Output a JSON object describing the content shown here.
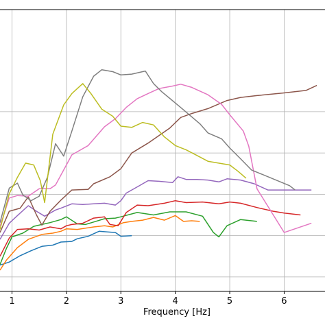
{
  "chart_data": {
    "type": "line",
    "xlabel": "Frequency [Hz]",
    "ylabel": "",
    "title": "",
    "xlim": [
      0.78,
      6.75
    ],
    "ylim": [
      0,
      100
    ],
    "grid": true,
    "x_ticks": [
      1,
      2,
      3,
      4,
      5,
      6
    ],
    "x_tick_labels": [
      "1",
      "2",
      "3",
      "4",
      "5",
      "6"
    ],
    "y_gridlines": [
      7,
      27,
      47,
      67,
      87
    ],
    "colors": [
      "#1f77b4",
      "#ff7f0e",
      "#2ca02c",
      "#d62728",
      "#9467bd",
      "#8c564b",
      "#e377c2",
      "#7f7f7f",
      "#bcbd22"
    ],
    "series": [
      {
        "color": "#1f77b4",
        "x": [
          0.78,
          0.95,
          1.15,
          1.35,
          1.55,
          1.75,
          1.9,
          2.1,
          2.2,
          2.4,
          2.6,
          2.75,
          2.9,
          3.0,
          3.2
        ],
        "y": [
          12.7,
          14.2,
          17.3,
          19.7,
          21.8,
          22.4,
          23.9,
          24.2,
          25.5,
          26.7,
          29.1,
          28.8,
          28.5,
          26.7,
          27.0
        ]
      },
      {
        "color": "#ff7f0e",
        "x": [
          0.78,
          0.9,
          1.1,
          1.3,
          1.55,
          1.75,
          1.9,
          2.0,
          2.2,
          2.5,
          2.7,
          2.85,
          3.05,
          3.2,
          3.4,
          3.6,
          3.8,
          4.0,
          4.15,
          4.3,
          4.45
        ],
        "y": [
          10.3,
          15.2,
          21.2,
          25.2,
          27.6,
          28.2,
          29.1,
          30.3,
          30.0,
          31.2,
          31.8,
          31.2,
          33.3,
          33.9,
          34.5,
          35.8,
          34.5,
          36.7,
          33.9,
          34.2,
          33.9
        ]
      },
      {
        "color": "#2ca02c",
        "x": [
          0.78,
          0.9,
          1.0,
          1.2,
          1.4,
          1.55,
          1.7,
          1.9,
          2.0,
          2.2,
          2.35,
          2.5,
          2.7,
          2.9,
          3.0,
          3.3,
          3.6,
          3.9,
          4.2,
          4.5,
          4.7,
          4.8,
          4.95,
          5.2,
          5.5
        ],
        "y": [
          13.0,
          20.9,
          26.4,
          28.2,
          31.5,
          32.4,
          33.3,
          34.8,
          36.1,
          32.7,
          32.4,
          33.6,
          35.2,
          35.5,
          36.1,
          38.2,
          37.0,
          38.5,
          38.5,
          36.4,
          28.5,
          26.4,
          31.8,
          34.8,
          33.9
        ]
      },
      {
        "color": "#d62728",
        "x": [
          0.78,
          0.95,
          1.1,
          1.3,
          1.5,
          1.7,
          1.9,
          2.0,
          2.1,
          2.3,
          2.5,
          2.7,
          2.8,
          2.95,
          3.1,
          3.3,
          3.5,
          3.8,
          4.0,
          4.2,
          4.5,
          4.8,
          5.0,
          5.2,
          5.5,
          5.8,
          6.0,
          6.3
        ],
        "y": [
          17.0,
          25.8,
          30.0,
          30.3,
          29.7,
          31.2,
          30.3,
          31.8,
          32.4,
          33.0,
          35.5,
          36.1,
          32.4,
          31.8,
          38.2,
          41.8,
          41.5,
          42.7,
          43.9,
          43.0,
          43.3,
          42.4,
          43.3,
          42.7,
          40.6,
          38.8,
          37.9,
          37.0
        ]
      },
      {
        "color": "#9467bd",
        "x": [
          0.78,
          0.95,
          1.1,
          1.3,
          1.45,
          1.6,
          1.8,
          1.9,
          2.1,
          2.3,
          2.5,
          2.7,
          2.9,
          3.0,
          3.1,
          3.3,
          3.5,
          3.7,
          3.95,
          4.05,
          4.2,
          4.4,
          4.6,
          4.8,
          4.95,
          5.2,
          5.45,
          5.7,
          6.0,
          6.5
        ],
        "y": [
          25.2,
          33.0,
          36.7,
          41.5,
          38.8,
          36.4,
          39.4,
          40.3,
          42.4,
          42.1,
          42.4,
          42.7,
          41.8,
          43.9,
          47.6,
          50.6,
          53.6,
          53.3,
          52.7,
          55.5,
          54.2,
          54.2,
          53.9,
          53.0,
          54.5,
          53.9,
          52.1,
          49.1,
          49.1,
          49.1
        ]
      },
      {
        "color": "#8c564b",
        "x": [
          0.78,
          0.95,
          1.15,
          1.3,
          1.45,
          1.55,
          1.7,
          1.9,
          2.1,
          2.4,
          2.5,
          2.8,
          3.0,
          3.2,
          3.5,
          3.9,
          4.1,
          4.3,
          4.6,
          4.95,
          5.2,
          5.5,
          6.0,
          6.4,
          6.6
        ],
        "y": [
          28.5,
          38.8,
          40.3,
          45.8,
          37.0,
          32.1,
          38.8,
          44.2,
          49.1,
          49.4,
          52.1,
          55.5,
          59.4,
          67.0,
          71.8,
          79.1,
          84.2,
          86.1,
          88.5,
          92.4,
          93.9,
          94.8,
          96.1,
          97.3,
          99.7
        ]
      },
      {
        "color": "#e377c2",
        "x": [
          0.78,
          0.95,
          1.1,
          1.3,
          1.5,
          1.7,
          1.8,
          2.1,
          2.4,
          2.7,
          2.9,
          3.1,
          3.3,
          3.5,
          3.7,
          3.95,
          4.1,
          4.3,
          4.6,
          4.85,
          5.0,
          5.25,
          5.35,
          5.5,
          6.0,
          6.5
        ],
        "y": [
          31.5,
          45.2,
          46.4,
          46.1,
          49.7,
          49.7,
          51.5,
          66.1,
          70.6,
          79.7,
          83.6,
          89.1,
          93.3,
          95.8,
          98.2,
          99.4,
          100.3,
          98.8,
          95.2,
          90.6,
          85.5,
          77.6,
          70.3,
          49.7,
          28.5,
          33.0
        ]
      },
      {
        "color": "#7f7f7f",
        "x": [
          0.78,
          0.95,
          1.1,
          1.2,
          1.35,
          1.5,
          1.65,
          1.8,
          1.95,
          2.1,
          2.3,
          2.5,
          2.65,
          2.85,
          3.0,
          3.2,
          3.45,
          3.6,
          3.75,
          4.0,
          4.15,
          4.45,
          4.6,
          4.85,
          5.0,
          5.2,
          5.4,
          6.1,
          6.2
        ],
        "y": [
          33.3,
          50.0,
          52.4,
          46.7,
          43.9,
          46.1,
          55.2,
          71.5,
          65.5,
          77.6,
          94.2,
          104.2,
          107.3,
          106.4,
          104.8,
          105.2,
          106.7,
          100.6,
          96.7,
          91.2,
          87.9,
          81.2,
          76.7,
          73.9,
          69.4,
          64.2,
          58.8,
          51.2,
          49.1
        ]
      },
      {
        "color": "#bcbd22",
        "x": [
          0.78,
          0.95,
          1.1,
          1.25,
          1.4,
          1.52,
          1.6,
          1.75,
          1.95,
          2.1,
          2.3,
          2.45,
          2.65,
          2.85,
          3.0,
          3.2,
          3.4,
          3.6,
          3.8,
          4.0,
          4.2,
          4.4,
          4.6,
          5.0,
          5.15,
          5.3
        ],
        "y": [
          30.0,
          47.3,
          55.2,
          62.1,
          61.2,
          53.6,
          43.0,
          76.1,
          90.3,
          95.8,
          100.6,
          95.8,
          88.2,
          84.8,
          80.0,
          79.4,
          81.8,
          80.6,
          74.8,
          70.6,
          68.5,
          65.8,
          63.0,
          61.2,
          58.2,
          54.8
        ]
      }
    ]
  }
}
